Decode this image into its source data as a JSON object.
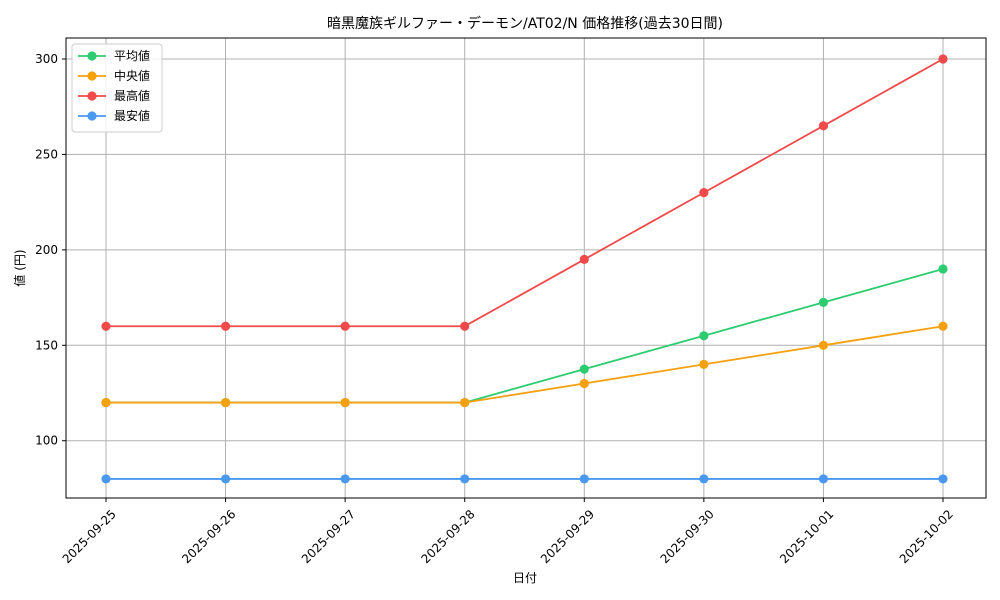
{
  "chart_data": {
    "type": "line",
    "title": "暗黒魔族ギルファー・デーモン/AT02/N 価格推移(過去30日間)",
    "xlabel": "日付",
    "ylabel": "値 (円)",
    "categories": [
      "2025-09-25",
      "2025-09-26",
      "2025-09-27",
      "2025-09-28",
      "2025-09-29",
      "2025-09-30",
      "2025-10-01",
      "2025-10-02"
    ],
    "ylim": [
      70,
      311
    ],
    "yticks": [
      100,
      150,
      200,
      250,
      300
    ],
    "grid": true,
    "legend_position": "top-left",
    "series": [
      {
        "name": "平均値",
        "color": "#2ecc71",
        "values": [
          120,
          120,
          120,
          120,
          137.5,
          155,
          172.5,
          190
        ]
      },
      {
        "name": "中央値",
        "color": "#f5a00f",
        "values": [
          120,
          120,
          120,
          120,
          130,
          140,
          150,
          160
        ]
      },
      {
        "name": "最高値",
        "color": "#f04a4a",
        "values": [
          160,
          160,
          160,
          160,
          195,
          230,
          265,
          300
        ]
      },
      {
        "name": "最安値",
        "color": "#4a98f0",
        "values": [
          80,
          80,
          80,
          80,
          80,
          80,
          80,
          80
        ]
      }
    ]
  }
}
